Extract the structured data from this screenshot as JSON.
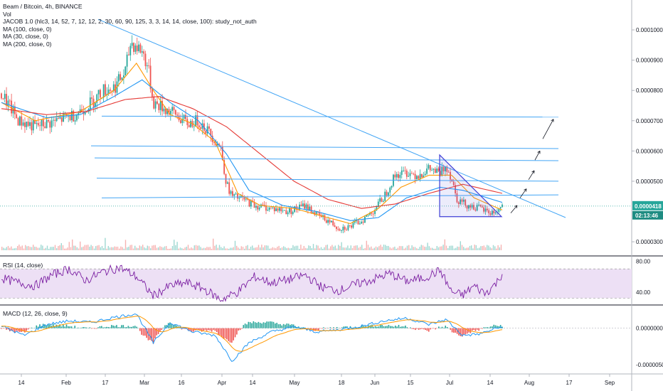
{
  "legend": {
    "title": "Beam / Bitcoin, 4h, BINANCE",
    "vol": "Vol",
    "indicators": [
      "JACOB 1.0 (hlc3, 14, 52, 7, 12, 12, 2, 30, 60, 90, 125, 3, 3, 14, 14, close, 100): study_not_auth",
      "MA (100, close, 0)",
      "MA (30, close, 0)",
      "MA (200, close, 0)"
    ]
  },
  "rsi_label": "RSI (14, close)",
  "macd_label": "MACD (12, 26, close, 9)",
  "colors": {
    "up": "#26a69a",
    "down": "#ef5350",
    "ma_blue": "#2196f3",
    "ma_orange": "#ff9800",
    "ma_red": "#e53935",
    "trend": "#42a5f5",
    "triangle": "#3f3fd6",
    "rsi": "#7b1fa2",
    "rsi_band": "#ede0f5",
    "macd": "#2196f3",
    "signal": "#ff9800",
    "last_price": "#26a69a"
  },
  "chart_data": [
    {
      "type": "candlestick",
      "title": "Beam / Bitcoin, 4h, BINANCE",
      "x_ticks": [
        "14",
        "Feb",
        "17",
        "Mar",
        "16",
        "Apr",
        "14",
        "May",
        "18",
        "Jun",
        "15",
        "Jul",
        "14",
        "Aug",
        "17",
        "Sep"
      ],
      "y_ticks": [
        "0.0001000",
        "0.0000900",
        "0.0000800",
        "0.0000700",
        "0.0000600",
        "0.0000500",
        "0.0000300"
      ],
      "ylim": [
        2.72e-05,
        0.000108
      ],
      "last_price": "0.0000418",
      "countdown": "02:13:46",
      "price_path": [
        [
          0,
          7.9e-05
        ],
        [
          3,
          7e-05
        ],
        [
          6,
          6.8e-05
        ],
        [
          10,
          7e-05
        ],
        [
          13,
          7.2e-05
        ],
        [
          16,
          7.6e-05
        ],
        [
          18,
          8e-05
        ],
        [
          20,
          8.1e-05
        ],
        [
          22,
          8.6e-05
        ],
        [
          23,
          9.6e-05
        ],
        [
          25,
          9.3e-05
        ],
        [
          26,
          8.8e-05
        ],
        [
          27,
          7.6e-05
        ],
        [
          29,
          7.4e-05
        ],
        [
          31,
          7.2e-05
        ],
        [
          33,
          6.9e-05
        ],
        [
          35,
          7e-05
        ],
        [
          37,
          6.6e-05
        ],
        [
          39,
          6.1e-05
        ],
        [
          40,
          4.9e-05
        ],
        [
          41,
          4.5e-05
        ],
        [
          43,
          4.4e-05
        ],
        [
          45,
          4.2e-05
        ],
        [
          48,
          4.1e-05
        ],
        [
          51,
          4e-05
        ],
        [
          54,
          4.2e-05
        ],
        [
          56,
          3.9e-05
        ],
        [
          58,
          3.7e-05
        ],
        [
          60,
          3.45e-05
        ],
        [
          62,
          3.5e-05
        ],
        [
          64,
          3.7e-05
        ],
        [
          66,
          4e-05
        ],
        [
          68,
          4.5e-05
        ],
        [
          70,
          5.2e-05
        ],
        [
          72,
          5.3e-05
        ],
        [
          74,
          5.2e-05
        ],
        [
          76,
          5.4e-05
        ],
        [
          78,
          5.25e-05
        ],
        [
          79,
          5.55e-05
        ],
        [
          80,
          5.1e-05
        ],
        [
          81,
          4.4e-05
        ],
        [
          83,
          4.2e-05
        ],
        [
          85,
          4.1e-05
        ],
        [
          87,
          3.95e-05
        ],
        [
          88,
          4e-05
        ],
        [
          89,
          4.18e-05
        ]
      ],
      "moving_averages": [
        {
          "name": "MA (30, close, 0)",
          "color": "#ff9800",
          "points": [
            [
              0,
              7.6e-05
            ],
            [
              6,
              7e-05
            ],
            [
              14,
              7.3e-05
            ],
            [
              20,
              8e-05
            ],
            [
              24,
              8.9e-05
            ],
            [
              27,
              8e-05
            ],
            [
              30,
              7.2e-05
            ],
            [
              34,
              6.9e-05
            ],
            [
              38,
              6.3e-05
            ],
            [
              42,
              4.6e-05
            ],
            [
              46,
              4.2e-05
            ],
            [
              52,
              4.1e-05
            ],
            [
              58,
              3.8e-05
            ],
            [
              62,
              3.6e-05
            ],
            [
              67,
              4.1e-05
            ],
            [
              71,
              4.8e-05
            ],
            [
              76,
              5.2e-05
            ],
            [
              80,
              5.2e-05
            ],
            [
              84,
              4.45e-05
            ],
            [
              89,
              4.05e-05
            ]
          ]
        },
        {
          "name": "MA (100, close, 0)",
          "color": "#2196f3",
          "points": [
            [
              0,
              7.6e-05
            ],
            [
              8,
              7.1e-05
            ],
            [
              14,
              7.2e-05
            ],
            [
              20,
              7.8e-05
            ],
            [
              25,
              8.35e-05
            ],
            [
              30,
              7.6e-05
            ],
            [
              35,
              7e-05
            ],
            [
              40,
              5.9e-05
            ],
            [
              44,
              4.7e-05
            ],
            [
              50,
              4.2e-05
            ],
            [
              56,
              4e-05
            ],
            [
              62,
              3.7e-05
            ],
            [
              67,
              3.8e-05
            ],
            [
              72,
              4.45e-05
            ],
            [
              78,
              4.8e-05
            ],
            [
              82,
              4.7e-05
            ],
            [
              89,
              4.3e-05
            ]
          ]
        },
        {
          "name": "MA (200, close, 0)",
          "color": "#e53935",
          "points": [
            [
              0,
              7.4e-05
            ],
            [
              8,
              7.2e-05
            ],
            [
              15,
              7.3e-05
            ],
            [
              22,
              7.7e-05
            ],
            [
              28,
              7.8e-05
            ],
            [
              34,
              7.4e-05
            ],
            [
              40,
              6.8e-05
            ],
            [
              46,
              5.9e-05
            ],
            [
              52,
              5e-05
            ],
            [
              58,
              4.4e-05
            ],
            [
              64,
              4.1e-05
            ],
            [
              70,
              4.25e-05
            ],
            [
              76,
              4.6e-05
            ],
            [
              82,
              4.9e-05
            ],
            [
              89,
              4.6e-05
            ]
          ]
        }
      ]
    },
    {
      "type": "line",
      "title": "RSI (14, close)",
      "y_ticks": [
        "80.00",
        "40.00"
      ],
      "ylim": [
        25,
        85
      ],
      "band": [
        32,
        70
      ],
      "points": [
        [
          0,
          58
        ],
        [
          3,
          52
        ],
        [
          6,
          48
        ],
        [
          9,
          62
        ],
        [
          12,
          70
        ],
        [
          15,
          55
        ],
        [
          18,
          66
        ],
        [
          21,
          72
        ],
        [
          24,
          60
        ],
        [
          27,
          35
        ],
        [
          30,
          48
        ],
        [
          33,
          52
        ],
        [
          36,
          44
        ],
        [
          39,
          30
        ],
        [
          42,
          40
        ],
        [
          45,
          60
        ],
        [
          48,
          52
        ],
        [
          51,
          56
        ],
        [
          54,
          62
        ],
        [
          57,
          46
        ],
        [
          60,
          42
        ],
        [
          63,
          50
        ],
        [
          66,
          56
        ],
        [
          69,
          64
        ],
        [
          72,
          54
        ],
        [
          75,
          58
        ],
        [
          78,
          68
        ],
        [
          80,
          40
        ],
        [
          82,
          36
        ],
        [
          84,
          48
        ],
        [
          86,
          38
        ],
        [
          88,
          52
        ],
        [
          89,
          64
        ]
      ]
    },
    {
      "type": "line",
      "title": "MACD (12, 26, close, 9)",
      "y_ticks": [
        "0.0000000",
        "-0.0000050"
      ],
      "ylim": [
        -6e-06,
        3e-06
      ],
      "series": [
        {
          "name": "MACD",
          "points": [
            [
              0,
              3e-07
            ],
            [
              4,
              -1e-06
            ],
            [
              8,
              5e-07
            ],
            [
              12,
              1e-06
            ],
            [
              16,
              8e-07
            ],
            [
              20,
              1.5e-06
            ],
            [
              24,
              2e-06
            ],
            [
              27,
              -2e-06
            ],
            [
              30,
              8e-07
            ],
            [
              34,
              -5e-07
            ],
            [
              38,
              -1e-06
            ],
            [
              41,
              -4.5e-06
            ],
            [
              44,
              -2e-06
            ],
            [
              48,
              -5e-07
            ],
            [
              52,
              2e-07
            ],
            [
              56,
              -5e-07
            ],
            [
              60,
              -2e-07
            ],
            [
              64,
              3e-07
            ],
            [
              68,
              1e-06
            ],
            [
              72,
              1.4e-06
            ],
            [
              76,
              5e-07
            ],
            [
              79,
              1.2e-06
            ],
            [
              82,
              -1e-06
            ],
            [
              85,
              -8e-07
            ],
            [
              88,
              0.0
            ],
            [
              89,
              2e-07
            ]
          ]
        }
      ]
    }
  ],
  "annotations": {
    "arrows": 5
  }
}
